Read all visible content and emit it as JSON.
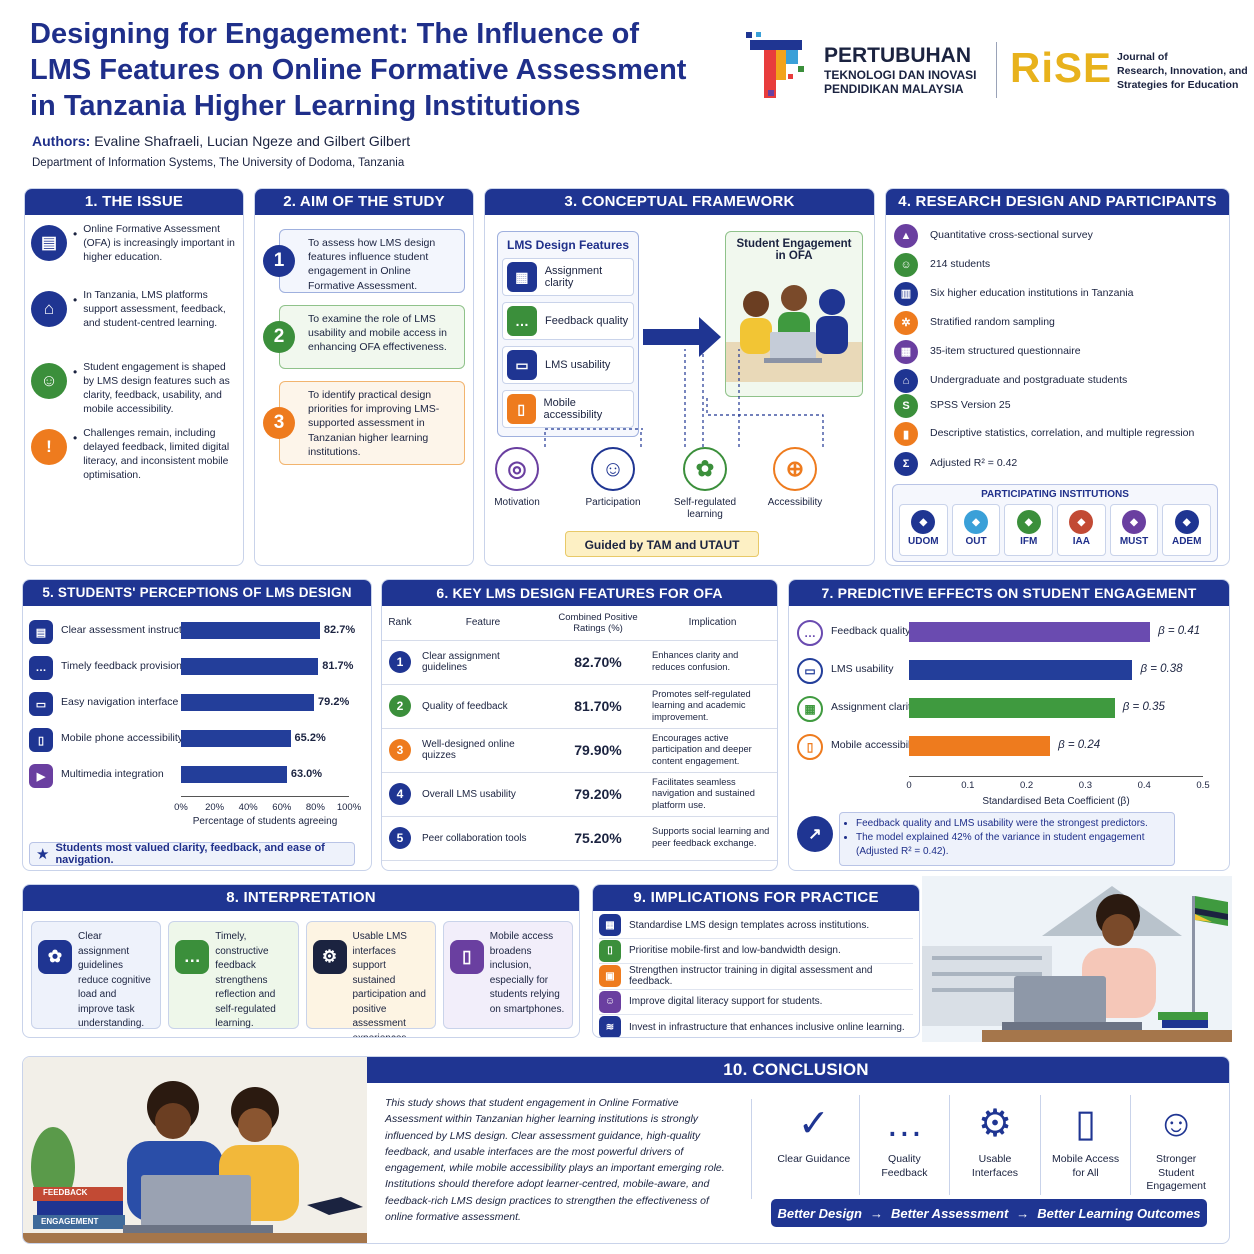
{
  "header": {
    "title_l1": "Designing for Engagement: The Influence of",
    "title_l2": "LMS Features on Online Formative Assessment",
    "title_l3": "in Tanzania Higher Learning Institutions",
    "authors_label": "Authors:",
    "authors": "Evaline Shafraeli, Lucian Ngeze and Gilbert Gilbert",
    "department": "Department of Information Systems, The University of Dodoma, Tanzania",
    "org_l1": "PERTUBUHAN",
    "org_l2": "TEKNOLOGI DAN INOVASI",
    "org_l3": "PENDIDIKAN MALAYSIA",
    "rise_logo": "RiSE",
    "journal_l1": "Journal of",
    "journal_l2": "Research, Innovation, and",
    "journal_l3": "Strategies for Education"
  },
  "issue": {
    "title": "1. THE ISSUE",
    "items": [
      {
        "icon": "document-icon",
        "color": "#1f3592",
        "text": "Online Formative Assessment (OFA) is increasingly important in higher education."
      },
      {
        "icon": "graduation-cap-icon",
        "color": "#1f3592",
        "text": "In Tanzania, LMS platforms support assessment, feedback, and student-centred learning."
      },
      {
        "icon": "group-icon",
        "color": "#3b8f3b",
        "text": "Student engagement is shaped by LMS design features such as clarity, feedback, usability, and mobile accessibility."
      },
      {
        "icon": "warning-icon",
        "color": "#ee7b1e",
        "text": "Challenges remain, including delayed feedback, limited digital literacy, and inconsistent mobile optimisation."
      }
    ]
  },
  "aim": {
    "title": "2. AIM OF THE STUDY",
    "items": [
      {
        "num": "1",
        "color": "#1f3592",
        "text": "To assess how LMS design features influence student engagement in Online Formative Assessment."
      },
      {
        "num": "2",
        "color": "#3b8f3b",
        "text": "To examine the role of LMS usability and mobile access in enhancing OFA effectiveness."
      },
      {
        "num": "3",
        "color": "#ee7b1e",
        "text": "To identify practical design priorities for improving LMS-supported assessment in Tanzanian higher learning institutions."
      }
    ]
  },
  "framework": {
    "title": "3. CONCEPTUAL FRAMEWORK",
    "lms_title": "LMS Design Features",
    "features": [
      "Assignment clarity",
      "Feedback quality",
      "LMS usability",
      "Mobile accessibility"
    ],
    "engagement_title": "Student Engagement in OFA",
    "outcomes": [
      {
        "label": "Motivation",
        "color": "#6a3fa0"
      },
      {
        "label": "Participation",
        "color": "#1f3592"
      },
      {
        "label": "Self-regulated learning",
        "color": "#3b8f3b"
      },
      {
        "label": "Accessibility",
        "color": "#ee7b1e"
      }
    ],
    "guided": "Guided by TAM and UTAUT"
  },
  "design": {
    "title": "4. RESEARCH DESIGN AND PARTICIPANTS",
    "items": [
      {
        "icon": "chart-icon",
        "color": "#6a3fa0",
        "text": "Quantitative cross-sectional survey"
      },
      {
        "icon": "students-icon",
        "color": "#3b8f3b",
        "text": "214 students"
      },
      {
        "icon": "building-icon",
        "color": "#1f3592",
        "text": "Six higher education institutions in Tanzania"
      },
      {
        "icon": "network-icon",
        "color": "#ee7b1e",
        "text": "Stratified random sampling"
      },
      {
        "icon": "clipboard-icon",
        "color": "#6a3fa0",
        "text": "35-item structured questionnaire"
      },
      {
        "icon": "graduate-icon",
        "color": "#1f3592",
        "text": "Undergraduate and postgraduate students"
      },
      {
        "icon": "spss-icon",
        "color": "#3b8f3b",
        "text": "SPSS Version 25"
      },
      {
        "icon": "bar-chart-icon",
        "color": "#ee7b1e",
        "text": "Descriptive statistics, correlation, and multiple regression"
      },
      {
        "icon": "sigma-icon",
        "color": "#1f3592",
        "text": "Adjusted R² = 0.42"
      }
    ],
    "institutions_title": "PARTICIPATING INSTITUTIONS",
    "institutions": [
      "UDOM",
      "OUT",
      "IFM",
      "IAA",
      "MUST",
      "ADEM"
    ]
  },
  "perceptions": {
    "title": "5. STUDENTS' PERCEPTIONS OF LMS DESIGN FEATURES",
    "xlabel": "Percentage of students agreeing",
    "ticks": [
      "0%",
      "20%",
      "40%",
      "60%",
      "80%",
      "100%"
    ],
    "note": "Students most valued clarity, feedback, and ease of navigation."
  },
  "key": {
    "title": "6. KEY LMS DESIGN FEATURES FOR OFA",
    "h_rank": "Rank",
    "h_feature": "Feature",
    "h_ratings": "Combined Positive Ratings (%)",
    "h_impl": "Implication",
    "rows": [
      {
        "rank": "1",
        "color": "#1f3592",
        "feature": "Clear assignment guidelines",
        "rating": "82.70%",
        "impl": "Enhances clarity and reduces confusion."
      },
      {
        "rank": "2",
        "color": "#3b8f3b",
        "feature": "Quality of feedback",
        "rating": "81.70%",
        "impl": "Promotes self-regulated learning and academic improvement."
      },
      {
        "rank": "3",
        "color": "#ee7b1e",
        "feature": "Well-designed online quizzes",
        "rating": "79.90%",
        "impl": "Encourages active participation and deeper content engagement."
      },
      {
        "rank": "4",
        "color": "#1f3592",
        "feature": "Overall LMS usability",
        "rating": "79.20%",
        "impl": "Facilitates seamless navigation and sustained platform use."
      },
      {
        "rank": "5",
        "color": "#1f3592",
        "feature": "Peer collaboration tools",
        "rating": "75.20%",
        "impl": "Supports social learning and peer feedback exchange."
      }
    ]
  },
  "predictive": {
    "title": "7. PREDICTIVE EFFECTS ON STUDENT ENGAGEMENT",
    "xlabel": "Standardised Beta Coefficient (β)",
    "ticks": [
      "0",
      "0.1",
      "0.2",
      "0.3",
      "0.4",
      "0.5"
    ],
    "notes": [
      "Feedback quality and LMS usability were the strongest predictors.",
      "The model explained 42% of the variance in student engagement (Adjusted R² = 0.42)."
    ]
  },
  "interpretation": {
    "title": "8. INTERPRETATION",
    "cards": [
      {
        "icon": "brain-icon",
        "color": "#1f3592",
        "bg": "#eef2fb",
        "text": "Clear assignment guidelines reduce cognitive load and improve task understanding."
      },
      {
        "icon": "chat-icon",
        "color": "#3b8f3b",
        "bg": "#eef7ea",
        "text": "Timely, constructive feedback strengthens reflection and self-regulated learning."
      },
      {
        "icon": "laptop-gear-icon",
        "color": "#1b2340",
        "bg": "#fdf4e3",
        "text": "Usable LMS interfaces support sustained participation and positive assessment experiences."
      },
      {
        "icon": "phone-icon",
        "color": "#6a3fa0",
        "bg": "#f2eefa",
        "text": "Mobile access broadens inclusion, especially for students relying on smartphones."
      }
    ]
  },
  "implications": {
    "title": "9. IMPLICATIONS FOR PRACTICE",
    "items": [
      {
        "icon": "template-icon",
        "color": "#1f3592",
        "text": "Standardise LMS design templates across institutions."
      },
      {
        "icon": "mobile-icon",
        "color": "#3b8f3b",
        "text": "Prioritise mobile-first and low-bandwidth design."
      },
      {
        "icon": "training-icon",
        "color": "#ee7b1e",
        "text": "Strengthen instructor training in digital assessment and feedback."
      },
      {
        "icon": "people-icon",
        "color": "#6a3fa0",
        "text": "Improve digital literacy support for students."
      },
      {
        "icon": "wifi-icon",
        "color": "#1f3592",
        "text": "Invest in infrastructure that enhances inclusive online learning."
      }
    ]
  },
  "conclusion": {
    "title": "10. CONCLUSION",
    "text": "This study shows that student engagement in Online Formative Assessment within Tanzanian higher learning institutions is strongly influenced by LMS design. Clear assessment guidance, high-quality feedback, and usable interfaces are the most powerful drivers of engagement, while mobile accessibility plays an important emerging role. Institutions should therefore adopt learner-centred, mobile-aware, and feedback-rich LMS design practices to strengthen the effectiveness of online formative assessment.",
    "icons": [
      {
        "icon": "checklist-icon",
        "label": "Clear Guidance"
      },
      {
        "icon": "feedback-icon",
        "label": "Quality Feedback"
      },
      {
        "icon": "monitor-gear-icon",
        "label": "Usable Interfaces"
      },
      {
        "icon": "smartphone-icon",
        "label": "Mobile Access for All"
      },
      {
        "icon": "team-icon",
        "label": "Stronger Student Engagement"
      }
    ],
    "banner_1": "Better Design",
    "banner_2": "Better Assessment",
    "banner_3": "Better Learning Outcomes",
    "books_1": "FEEDBACK",
    "books_2": "ENGAGEMENT"
  },
  "chart_data": [
    {
      "type": "bar",
      "orientation": "horizontal",
      "categories": [
        "Clear assessment instructions",
        "Timely feedback provision",
        "Easy navigation interface",
        "Mobile phone accessibility",
        "Multimedia integration"
      ],
      "values": [
        82.7,
        81.7,
        79.2,
        65.2,
        63.0
      ],
      "value_labels": [
        "82.7%",
        "81.7%",
        "79.2%",
        "65.2%",
        "63.0%"
      ],
      "icons": [
        "list-icon",
        "speech-icon",
        "monitor-icon",
        "phone-icon",
        "play-icon"
      ],
      "icon_colors": [
        "#1f3592",
        "#1f3592",
        "#1f3592",
        "#1f3592",
        "#6a3fa0"
      ],
      "xlim": [
        0,
        100
      ],
      "xlabel": "Percentage of students agreeing",
      "color": "#233e9a"
    },
    {
      "type": "bar",
      "orientation": "horizontal",
      "categories": [
        "Feedback quality",
        "LMS usability",
        "Assignment clarity",
        "Mobile accessibility"
      ],
      "values": [
        0.41,
        0.38,
        0.35,
        0.24
      ],
      "value_labels": [
        "β = 0.41",
        "β = 0.38",
        "β = 0.35",
        "β = 0.24"
      ],
      "colors": [
        "#6a4bb0",
        "#233e9a",
        "#3f9a3f",
        "#ee7b1e"
      ],
      "icons": [
        "chat-icon",
        "monitor-icon",
        "clipboard-icon",
        "phone-icon"
      ],
      "xlim": [
        0,
        0.5
      ],
      "xlabel": "Standardised Beta Coefficient (β)"
    }
  ]
}
